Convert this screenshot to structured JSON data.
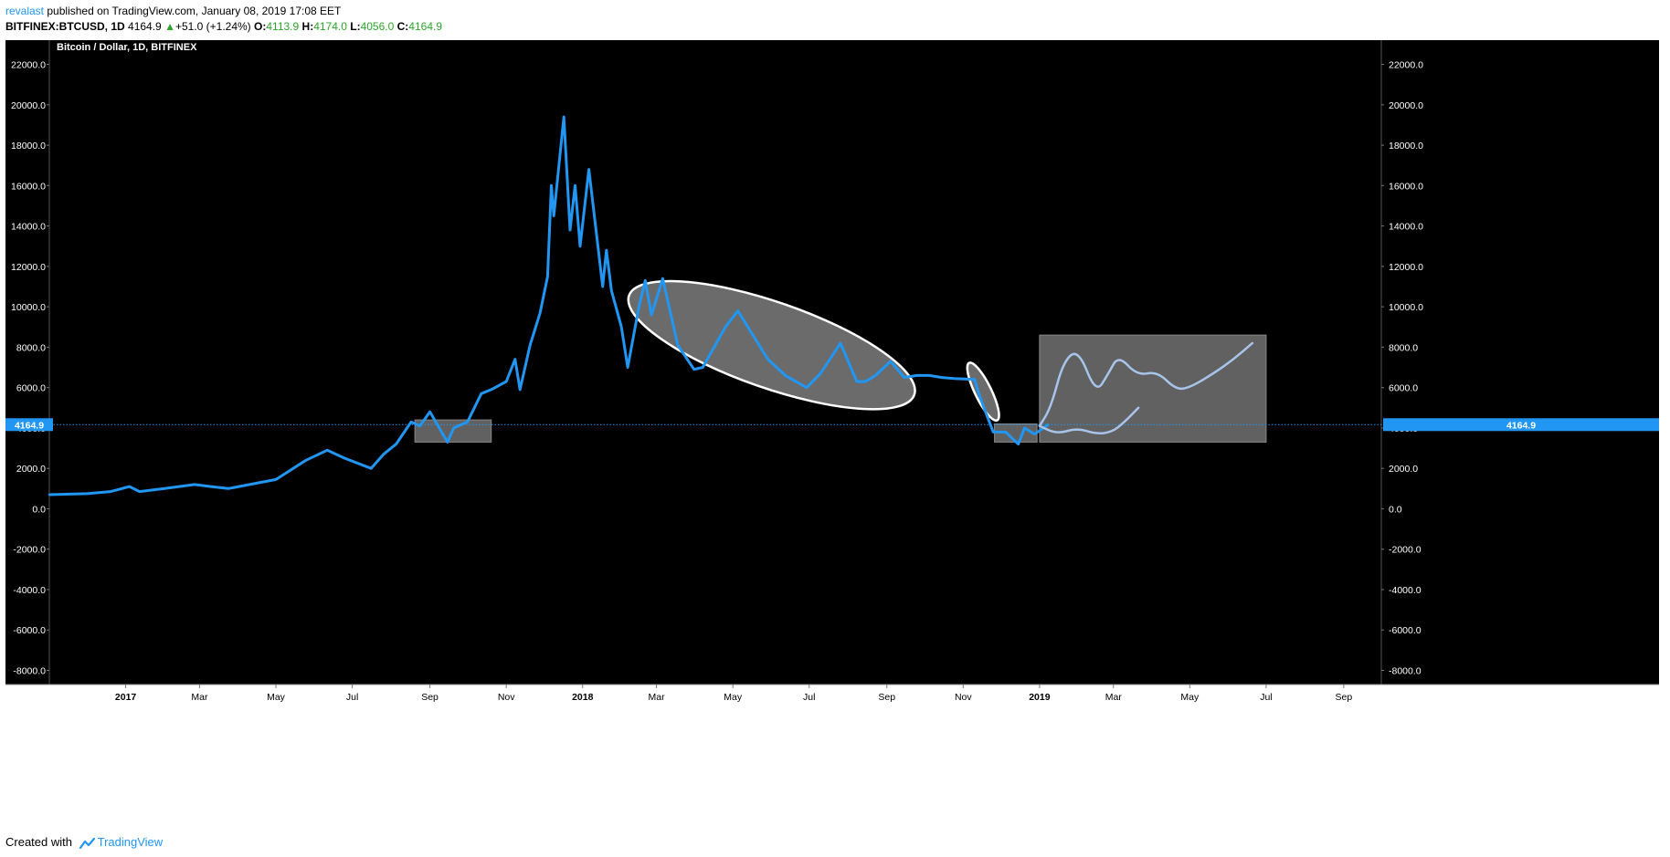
{
  "header": {
    "user": "revalast",
    "published": "published on TradingView.com, January 08, 2019 17:08 EET",
    "symbol": "BITFINEX:BTCUSD, 1D",
    "last": "4164.9",
    "change": "+51.0 (+1.24%)",
    "o_label": "O:",
    "o_value": "4113.9",
    "h_label": "H:",
    "h_value": "4174.0",
    "l_label": "L:",
    "l_value": "4056.0",
    "c_label": "C:",
    "c_value": "4164.9"
  },
  "footer": {
    "created_with": "Created with",
    "brand": "TradingView"
  },
  "colors": {
    "background": "#000000",
    "series": "#2196f3",
    "axis_text": "#ffffff",
    "price_badge": "#2196f3",
    "annotation_fill": "#6b6b6b",
    "annotation_stroke": "#ffffff",
    "projection": "#a8c4ea"
  },
  "chart_data": {
    "type": "line",
    "title": "Bitcoin / Dollar, 1D, BITFINEX",
    "xlabel": "",
    "ylabel": "",
    "ylim": [
      -8700,
      23200
    ],
    "y_ticks": [
      22000,
      20000,
      18000,
      16000,
      14000,
      12000,
      10000,
      8000,
      6000,
      4000,
      2000,
      0,
      -2000,
      -4000,
      -6000,
      -8000
    ],
    "y_tick_labels": [
      "22000.0",
      "20000.0",
      "18000.0",
      "16000.0",
      "14000.0",
      "12000.0",
      "10000.0",
      "8000.0",
      "6000.0",
      "4000.0",
      "2000.0",
      "0.0",
      "-2000.0",
      "-4000.0",
      "-6000.0",
      "-8000.0"
    ],
    "x_range": [
      "2016-11-01",
      "2019-10-01"
    ],
    "x_ticks": [
      {
        "date": "2017-01-01",
        "label": "2017",
        "bold": true
      },
      {
        "date": "2017-03-01",
        "label": "Mar"
      },
      {
        "date": "2017-05-01",
        "label": "May"
      },
      {
        "date": "2017-07-01",
        "label": "Jul"
      },
      {
        "date": "2017-09-01",
        "label": "Sep"
      },
      {
        "date": "2017-11-01",
        "label": "Nov"
      },
      {
        "date": "2018-01-01",
        "label": "2018",
        "bold": true
      },
      {
        "date": "2018-03-01",
        "label": "Mar"
      },
      {
        "date": "2018-05-01",
        "label": "May"
      },
      {
        "date": "2018-07-01",
        "label": "Jul"
      },
      {
        "date": "2018-09-01",
        "label": "Sep"
      },
      {
        "date": "2018-11-01",
        "label": "Nov"
      },
      {
        "date": "2019-01-01",
        "label": "2019",
        "bold": true
      },
      {
        "date": "2019-03-01",
        "label": "Mar"
      },
      {
        "date": "2019-05-01",
        "label": "May"
      },
      {
        "date": "2019-07-01",
        "label": "Jul"
      },
      {
        "date": "2019-09-01",
        "label": "Sep"
      }
    ],
    "last_price": 4164.9,
    "last_price_label": "4164.9",
    "series": [
      {
        "x": [
          "2016-11-01",
          "2016-12-01",
          "2016-12-20",
          "2017-01-04",
          "2017-01-12",
          "2017-02-01",
          "2017-02-25",
          "2017-03-10",
          "2017-03-24",
          "2017-04-10",
          "2017-05-01",
          "2017-05-25",
          "2017-06-11",
          "2017-06-25",
          "2017-07-16",
          "2017-07-26",
          "2017-08-05",
          "2017-08-17",
          "2017-08-24",
          "2017-09-01",
          "2017-09-15",
          "2017-09-20",
          "2017-10-01",
          "2017-10-12",
          "2017-10-20",
          "2017-11-01",
          "2017-11-08",
          "2017-11-12",
          "2017-11-20",
          "2017-11-28",
          "2017-12-04",
          "2017-12-07",
          "2017-12-09",
          "2017-12-17",
          "2017-12-22",
          "2017-12-26",
          "2017-12-30",
          "2018-01-06",
          "2018-01-17",
          "2018-01-20",
          "2018-01-24",
          "2018-02-01",
          "2018-02-06",
          "2018-02-15",
          "2018-02-20",
          "2018-02-25",
          "2018-03-06",
          "2018-03-18",
          "2018-03-31",
          "2018-04-07",
          "2018-04-25",
          "2018-05-05",
          "2018-05-20",
          "2018-05-29",
          "2018-06-12",
          "2018-06-29",
          "2018-07-10",
          "2018-07-26",
          "2018-08-08",
          "2018-08-15",
          "2018-08-23",
          "2018-09-04",
          "2018-09-15",
          "2018-09-25",
          "2018-10-05",
          "2018-10-15",
          "2018-10-25",
          "2018-11-10",
          "2018-11-14",
          "2018-11-20",
          "2018-11-25",
          "2018-12-05",
          "2018-12-15",
          "2018-12-20",
          "2018-12-28",
          "2019-01-08"
        ],
        "values": [
          700,
          750,
          850,
          1100,
          850,
          1000,
          1200,
          1100,
          1000,
          1200,
          1450,
          2400,
          2900,
          2500,
          2000,
          2700,
          3200,
          4300,
          4100,
          4800,
          3300,
          4000,
          4300,
          5700,
          5900,
          6300,
          7400,
          5900,
          8100,
          9700,
          11500,
          16000,
          14500,
          19400,
          13800,
          16000,
          13000,
          16800,
          11000,
          12800,
          10800,
          9000,
          7000,
          10000,
          11300,
          9600,
          11400,
          8100,
          6900,
          7000,
          9000,
          9800,
          8300,
          7400,
          6600,
          6000,
          6700,
          8200,
          6300,
          6300,
          6600,
          7300,
          6500,
          6600,
          6600,
          6500,
          6450,
          6400,
          5600,
          4600,
          3800,
          3800,
          3200,
          4000,
          3700,
          4164.9
        ]
      }
    ],
    "annotations": [
      {
        "type": "rectangle",
        "from": "2017-08-20",
        "to": "2017-10-20",
        "top": 4400,
        "bottom": 3300
      },
      {
        "type": "ellipse",
        "from": "2018-02-05",
        "to": "2018-09-25",
        "label_free": true
      },
      {
        "type": "ellipse",
        "from": "2018-11-01",
        "to": "2018-11-30",
        "label_free": true
      },
      {
        "type": "rectangle",
        "from": "2018-11-26",
        "to": "2018-12-30",
        "top": 4200,
        "bottom": 3300
      },
      {
        "type": "rectangle",
        "from": "2019-01-01",
        "to": "2019-07-01",
        "top": 8600,
        "bottom": 3300
      },
      {
        "type": "projection",
        "x": [
          "2019-01-01",
          "2019-01-10",
          "2019-01-20",
          "2019-02-01",
          "2019-02-15",
          "2019-02-25",
          "2019-03-05",
          "2019-03-20",
          "2019-04-05",
          "2019-04-20",
          "2019-05-01",
          "2019-05-20",
          "2019-06-05",
          "2019-06-20"
        ],
        "values": [
          4100,
          5000,
          7300,
          7900,
          5700,
          6700,
          7600,
          6600,
          6800,
          5900,
          6000,
          6700,
          7400,
          8200
        ]
      },
      {
        "type": "projection",
        "x": [
          "2019-01-01",
          "2019-01-15",
          "2019-01-31",
          "2019-02-15",
          "2019-02-28",
          "2019-03-10",
          "2019-03-21"
        ],
        "values": [
          4100,
          3700,
          4000,
          3700,
          3800,
          4300,
          5000
        ]
      }
    ]
  }
}
